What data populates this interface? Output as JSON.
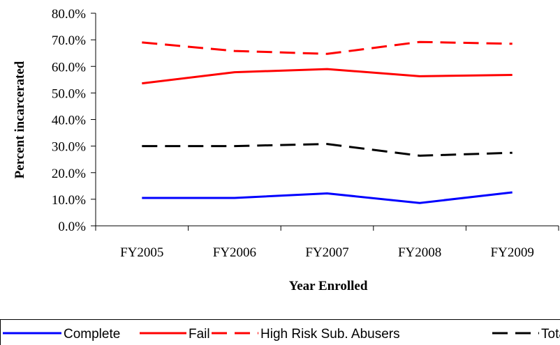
{
  "chart_data": {
    "type": "line",
    "categories": [
      "FY2005",
      "FY2006",
      "FY2007",
      "FY2008",
      "FY2009"
    ],
    "xlabel": "Year Enrolled",
    "ylabel": "Percent incarcerated",
    "ylim": [
      0,
      80
    ],
    "yticks": [
      "0.0%",
      "10.0%",
      "20.0%",
      "30.0%",
      "40.0%",
      "50.0%",
      "60.0%",
      "70.0%",
      "80.0%"
    ],
    "grid": false,
    "legend_position": "bottom",
    "series": [
      {
        "name": "Complete",
        "values": [
          10.5,
          10.5,
          12.2,
          8.6,
          12.6
        ],
        "color": "#0000ff",
        "dash": "solid"
      },
      {
        "name": "Fail",
        "values": [
          53.6,
          57.8,
          59.0,
          56.3,
          56.8
        ],
        "color": "#ff0000",
        "dash": "solid"
      },
      {
        "name": "High Risk  Sub. Abusers",
        "values": [
          69.0,
          65.8,
          64.7,
          69.2,
          68.5
        ],
        "color": "#ff0000",
        "dash": "dashed"
      },
      {
        "name": "Total",
        "values": [
          30.0,
          30.0,
          30.8,
          26.4,
          27.5
        ],
        "color": "#000000",
        "dash": "dashed"
      }
    ]
  }
}
